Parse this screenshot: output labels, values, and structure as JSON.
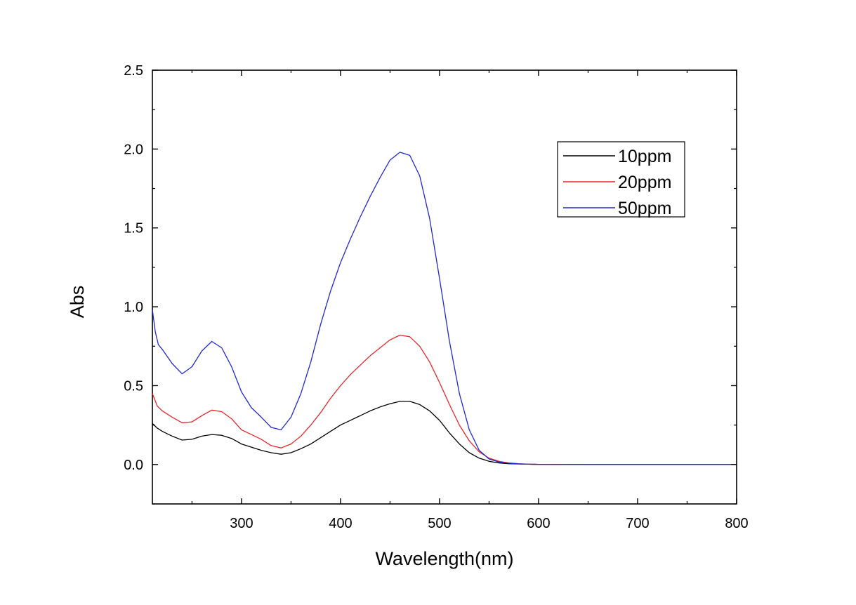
{
  "chart_data": {
    "type": "line",
    "title": "",
    "xlabel": "Wavelength(nm)",
    "ylabel": "Abs",
    "xlim": [
      210,
      800
    ],
    "ylim": [
      -0.25,
      2.5
    ],
    "xticks": [
      300,
      400,
      500,
      600,
      700,
      800
    ],
    "xtick_labels": [
      "300",
      "400",
      "500",
      "600",
      "700",
      "800"
    ],
    "yticks": [
      0.0,
      0.5,
      1.0,
      1.5,
      2.0,
      2.5
    ],
    "ytick_labels": [
      "0.0",
      "0.5",
      "1.0",
      "1.5",
      "2.0",
      "2.5"
    ],
    "grid": false,
    "legend_position": "top-right",
    "series": [
      {
        "name": "10ppm",
        "color": "#000000",
        "x": [
          210,
          215,
          220,
          230,
          240,
          250,
          260,
          270,
          280,
          290,
          300,
          310,
          320,
          330,
          340,
          350,
          360,
          370,
          380,
          390,
          400,
          410,
          420,
          430,
          440,
          450,
          460,
          470,
          480,
          490,
          500,
          510,
          520,
          530,
          540,
          550,
          560,
          570,
          580,
          590,
          600,
          650,
          700,
          750,
          800
        ],
        "y": [
          0.26,
          0.23,
          0.21,
          0.18,
          0.155,
          0.16,
          0.18,
          0.19,
          0.185,
          0.165,
          0.13,
          0.11,
          0.09,
          0.075,
          0.065,
          0.075,
          0.1,
          0.13,
          0.17,
          0.21,
          0.25,
          0.28,
          0.31,
          0.34,
          0.365,
          0.385,
          0.4,
          0.4,
          0.38,
          0.34,
          0.28,
          0.2,
          0.13,
          0.075,
          0.04,
          0.02,
          0.01,
          0.005,
          0.003,
          0.002,
          0.001,
          0.0,
          0.0,
          0.0,
          0.0
        ]
      },
      {
        "name": "20ppm",
        "color": "#e8262a",
        "x": [
          210,
          215,
          220,
          230,
          240,
          250,
          260,
          270,
          280,
          290,
          300,
          310,
          320,
          330,
          340,
          350,
          360,
          370,
          380,
          390,
          400,
          410,
          420,
          430,
          440,
          450,
          460,
          470,
          480,
          490,
          500,
          510,
          520,
          530,
          540,
          550,
          560,
          570,
          580,
          590,
          600,
          650,
          700,
          750,
          800
        ],
        "y": [
          0.45,
          0.37,
          0.34,
          0.3,
          0.265,
          0.27,
          0.31,
          0.345,
          0.335,
          0.29,
          0.22,
          0.19,
          0.16,
          0.12,
          0.105,
          0.13,
          0.18,
          0.25,
          0.33,
          0.42,
          0.5,
          0.57,
          0.63,
          0.69,
          0.74,
          0.79,
          0.82,
          0.81,
          0.75,
          0.65,
          0.52,
          0.38,
          0.25,
          0.15,
          0.08,
          0.04,
          0.02,
          0.01,
          0.005,
          0.002,
          0.001,
          0.0,
          0.0,
          0.0,
          0.0
        ]
      },
      {
        "name": "50ppm",
        "color": "#1f28d6",
        "x": [
          210,
          213,
          216,
          220,
          230,
          240,
          250,
          260,
          270,
          280,
          290,
          300,
          310,
          320,
          330,
          340,
          350,
          360,
          370,
          380,
          390,
          400,
          410,
          420,
          430,
          440,
          450,
          460,
          470,
          480,
          490,
          500,
          510,
          520,
          530,
          540,
          550,
          560,
          570,
          580,
          590,
          600,
          650,
          700,
          750,
          800
        ],
        "y": [
          0.98,
          0.84,
          0.76,
          0.73,
          0.64,
          0.575,
          0.62,
          0.72,
          0.78,
          0.74,
          0.62,
          0.46,
          0.36,
          0.3,
          0.235,
          0.22,
          0.3,
          0.45,
          0.65,
          0.89,
          1.1,
          1.28,
          1.43,
          1.57,
          1.7,
          1.82,
          1.93,
          1.98,
          1.96,
          1.83,
          1.56,
          1.18,
          0.78,
          0.45,
          0.22,
          0.09,
          0.035,
          0.015,
          0.008,
          0.004,
          0.002,
          0.001,
          0.0,
          0.0,
          0.0,
          0.0
        ]
      }
    ]
  }
}
